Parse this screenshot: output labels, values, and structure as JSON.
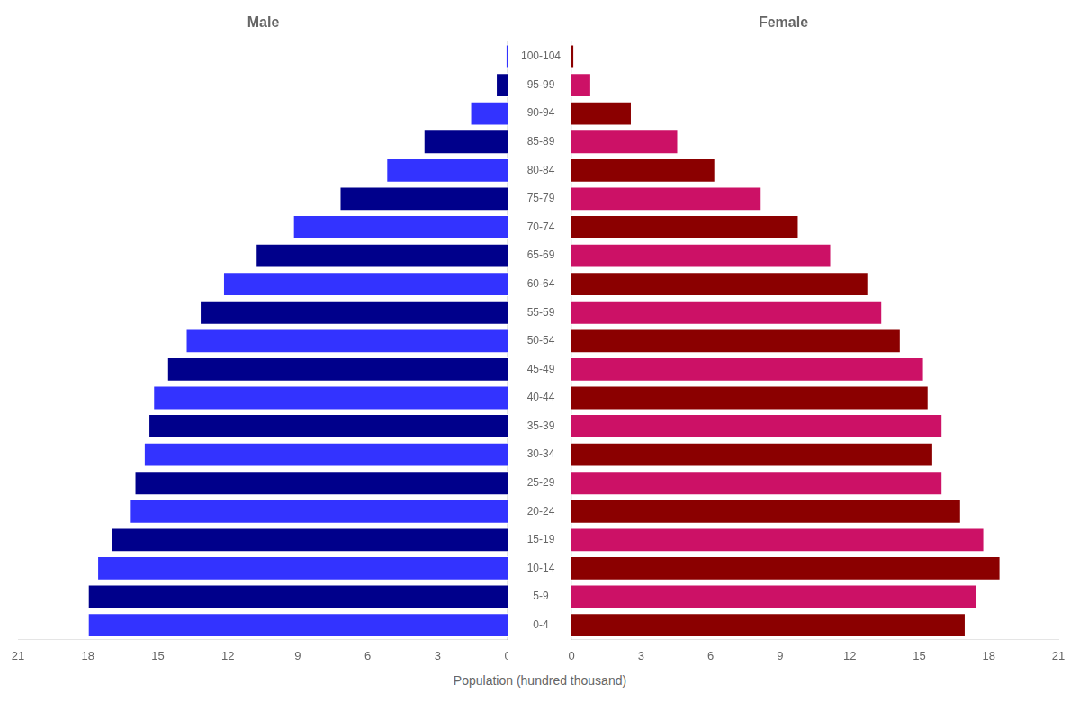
{
  "chart_data": {
    "type": "bar",
    "orientation": "horizontal",
    "xlabel": "Population (hundred thousand)",
    "categories": [
      "0-4",
      "5-9",
      "10-14",
      "15-19",
      "20-24",
      "25-29",
      "30-34",
      "35-39",
      "40-44",
      "45-49",
      "50-54",
      "55-59",
      "60-64",
      "65-69",
      "70-74",
      "75-79",
      "80-84",
      "85-89",
      "90-94",
      "95-99",
      "100-104"
    ],
    "series": [
      {
        "name": "Male",
        "values": [
          18.0,
          18.0,
          17.6,
          17.0,
          16.2,
          16.0,
          15.6,
          15.4,
          15.2,
          14.6,
          13.8,
          13.2,
          12.2,
          10.8,
          9.2,
          7.2,
          5.2,
          3.6,
          1.6,
          0.5,
          0.08
        ],
        "colors": [
          "#3333ff",
          "#00008b",
          "#3333ff",
          "#00008b",
          "#3333ff",
          "#00008b",
          "#3333ff",
          "#00008b",
          "#3333ff",
          "#00008b",
          "#3333ff",
          "#00008b",
          "#3333ff",
          "#00008b",
          "#3333ff",
          "#00008b",
          "#3333ff",
          "#00008b",
          "#3333ff",
          "#00008b",
          "#3333ff"
        ]
      },
      {
        "name": "Female",
        "values": [
          17.0,
          17.5,
          18.5,
          17.8,
          16.8,
          16.0,
          15.6,
          16.0,
          15.4,
          15.2,
          14.2,
          13.4,
          12.8,
          11.2,
          9.8,
          8.2,
          6.2,
          4.6,
          2.6,
          0.85,
          0.12
        ],
        "colors": [
          "#8b0000",
          "#cc1166",
          "#8b0000",
          "#cc1166",
          "#8b0000",
          "#cc1166",
          "#8b0000",
          "#cc1166",
          "#8b0000",
          "#cc1166",
          "#8b0000",
          "#cc1166",
          "#8b0000",
          "#cc1166",
          "#8b0000",
          "#cc1166",
          "#8b0000",
          "#cc1166",
          "#8b0000",
          "#cc1166",
          "#8b0000"
        ]
      }
    ],
    "xlim": [
      0,
      21
    ],
    "xticks": [
      0,
      3,
      6,
      9,
      12,
      15,
      18,
      21
    ],
    "grid": false
  }
}
